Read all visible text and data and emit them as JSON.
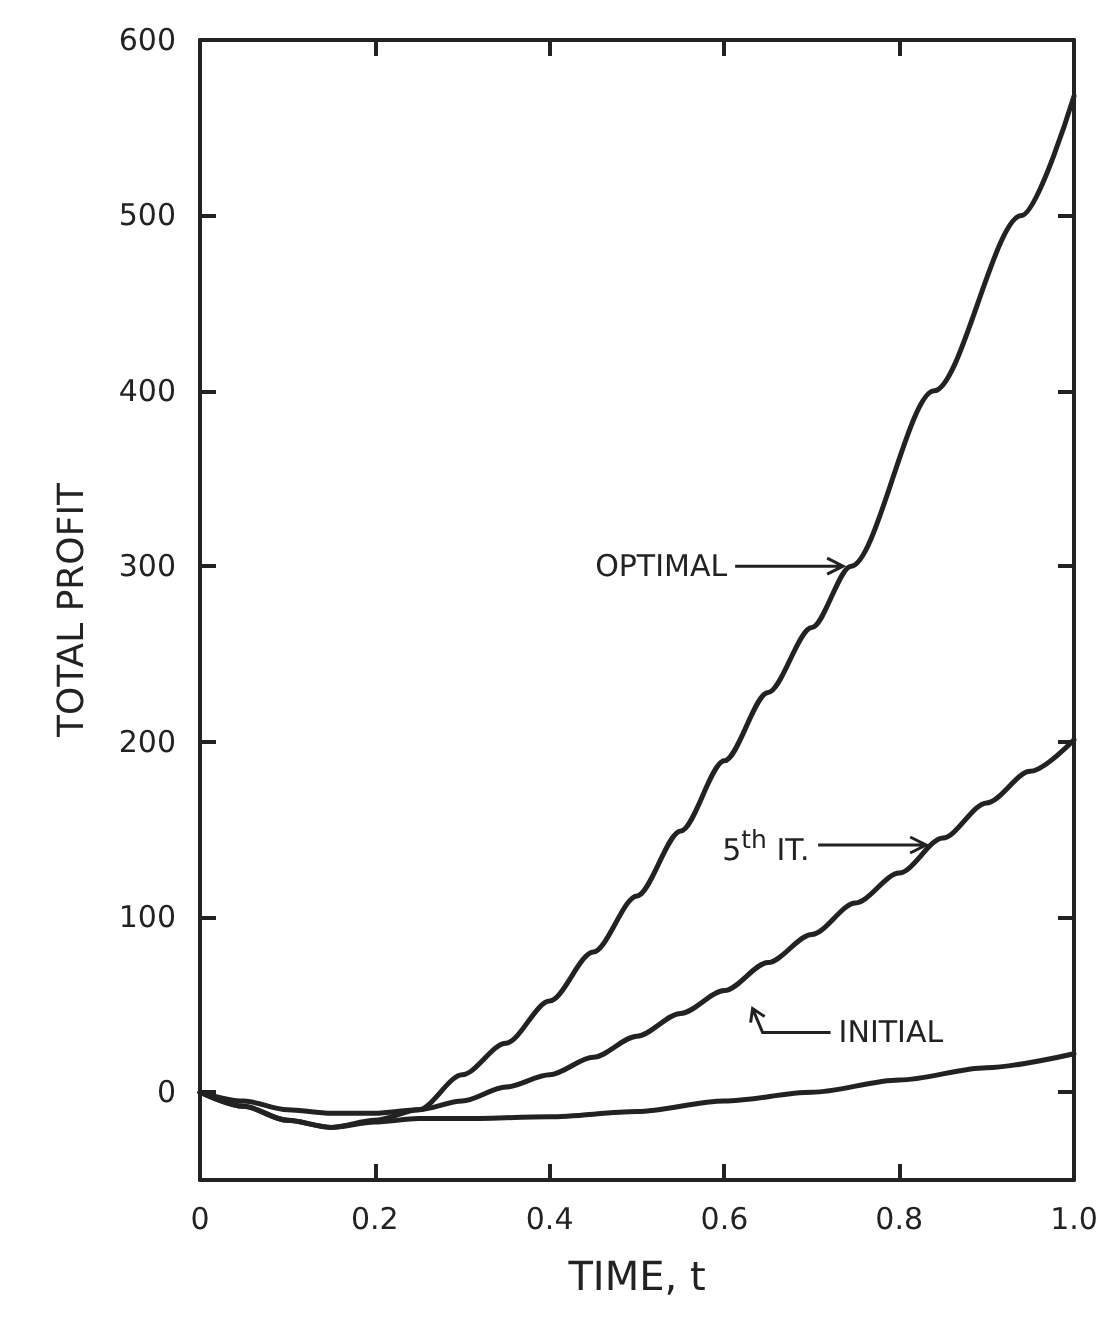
{
  "chart_data": {
    "type": "line",
    "xlabel": "TIME, t",
    "ylabel": "TOTAL PROFIT",
    "xlim": [
      0,
      1.0
    ],
    "xticks": [
      {
        "value": 0,
        "label": "0"
      },
      0.2,
      0.4,
      0.6,
      0.8,
      {
        "value": 1.0,
        "label": "1.0"
      }
    ],
    "ylim": [
      -50,
      600
    ],
    "yticks": [
      0,
      100,
      200,
      300,
      400,
      500,
      600
    ],
    "marker": "none",
    "line_style": "solid",
    "series": [
      {
        "color": "#222222",
        "x": [
          0,
          0.05,
          0.1,
          0.15,
          0.2,
          0.25,
          0.3,
          0.35,
          0.4,
          0.45,
          0.5,
          0.55,
          0.6,
          0.65,
          0.7,
          0.745,
          0.84,
          0.94,
          1.0
        ],
        "values": [
          0,
          -8,
          -16,
          -20,
          -16,
          -10,
          10,
          28,
          52,
          80,
          112,
          149,
          189,
          228,
          265,
          300,
          400,
          500,
          568
        ]
      },
      {
        "color": "#222222",
        "x": [
          0,
          0.05,
          0.1,
          0.15,
          0.2,
          0.25,
          0.3,
          0.35,
          0.4,
          0.45,
          0.5,
          0.55,
          0.6,
          0.65,
          0.7,
          0.75,
          0.8,
          0.85,
          0.9,
          0.95,
          1.0
        ],
        "values": [
          0,
          -5,
          -10,
          -12,
          -12,
          -10,
          -5,
          3,
          10,
          20,
          32,
          45,
          58,
          74,
          90,
          108,
          125,
          145,
          165,
          183,
          201
        ]
      },
      {
        "color": "#222222",
        "x": [
          0,
          0.05,
          0.1,
          0.15,
          0.2,
          0.25,
          0.3,
          0.4,
          0.5,
          0.6,
          0.7,
          0.8,
          0.9,
          1.0
        ],
        "values": [
          0,
          -8,
          -16,
          -20,
          -17,
          -15,
          -15,
          -14,
          -11,
          -5,
          0,
          7,
          14,
          22
        ]
      }
    ],
    "annotations": [
      "OPTIMAL",
      "5$^{th}$ IT.",
      "INITIAL"
    ]
  }
}
